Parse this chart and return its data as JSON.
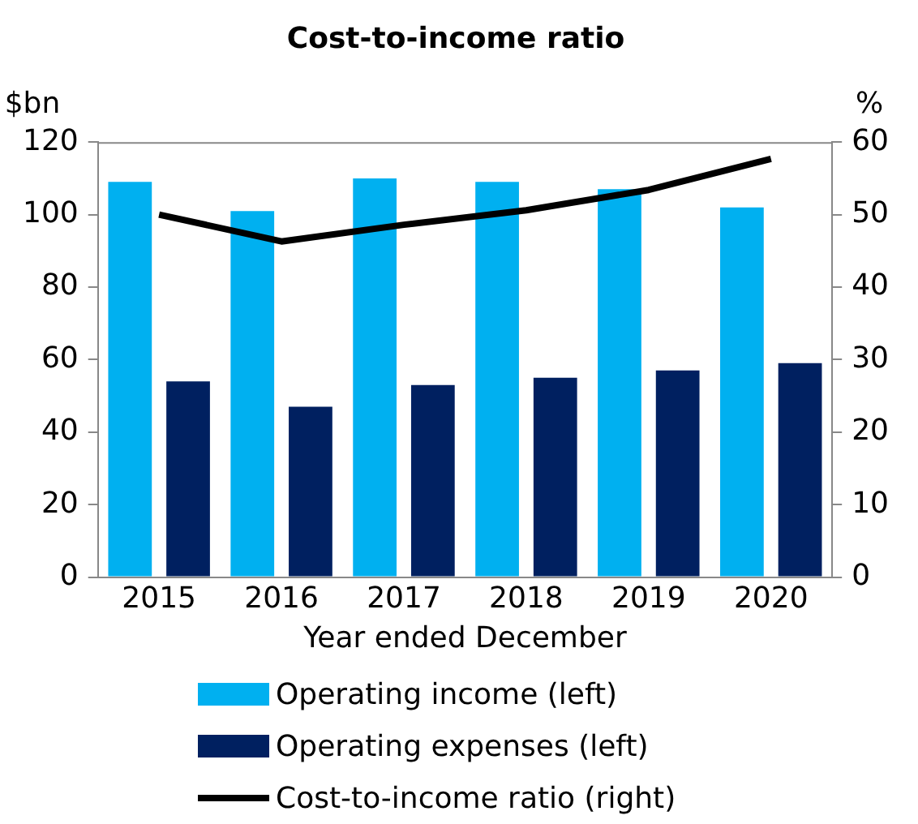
{
  "chart_data": {
    "type": "bar",
    "title": "Cost-to-income ratio",
    "xlabel": "Year ended December",
    "ylabel": "$bn",
    "y2label": "%",
    "categories": [
      "2015",
      "2016",
      "2017",
      "2018",
      "2019",
      "2020"
    ],
    "series": [
      {
        "name": "Operating income (left)",
        "color": "#00b0f0",
        "values": [
          109,
          101,
          110,
          109,
          107,
          102
        ]
      },
      {
        "name": "Operating expenses (left)",
        "color": "#002060",
        "values": [
          54,
          47,
          53,
          55,
          57,
          59
        ]
      },
      {
        "name": "Cost-to-income ratio (right)",
        "type": "line",
        "axis": "y2",
        "color": "#000000",
        "values": [
          50,
          46.3,
          48.6,
          50.6,
          53.4,
          57.7
        ]
      }
    ],
    "ylim": [
      0,
      120
    ],
    "yticks": [
      0,
      20,
      40,
      60,
      80,
      100,
      120
    ],
    "y2lim": [
      0,
      60
    ],
    "y2ticks": [
      0,
      10,
      20,
      30,
      40,
      50,
      60
    ],
    "grid": false,
    "legend": "bottom",
    "marker": "none"
  }
}
